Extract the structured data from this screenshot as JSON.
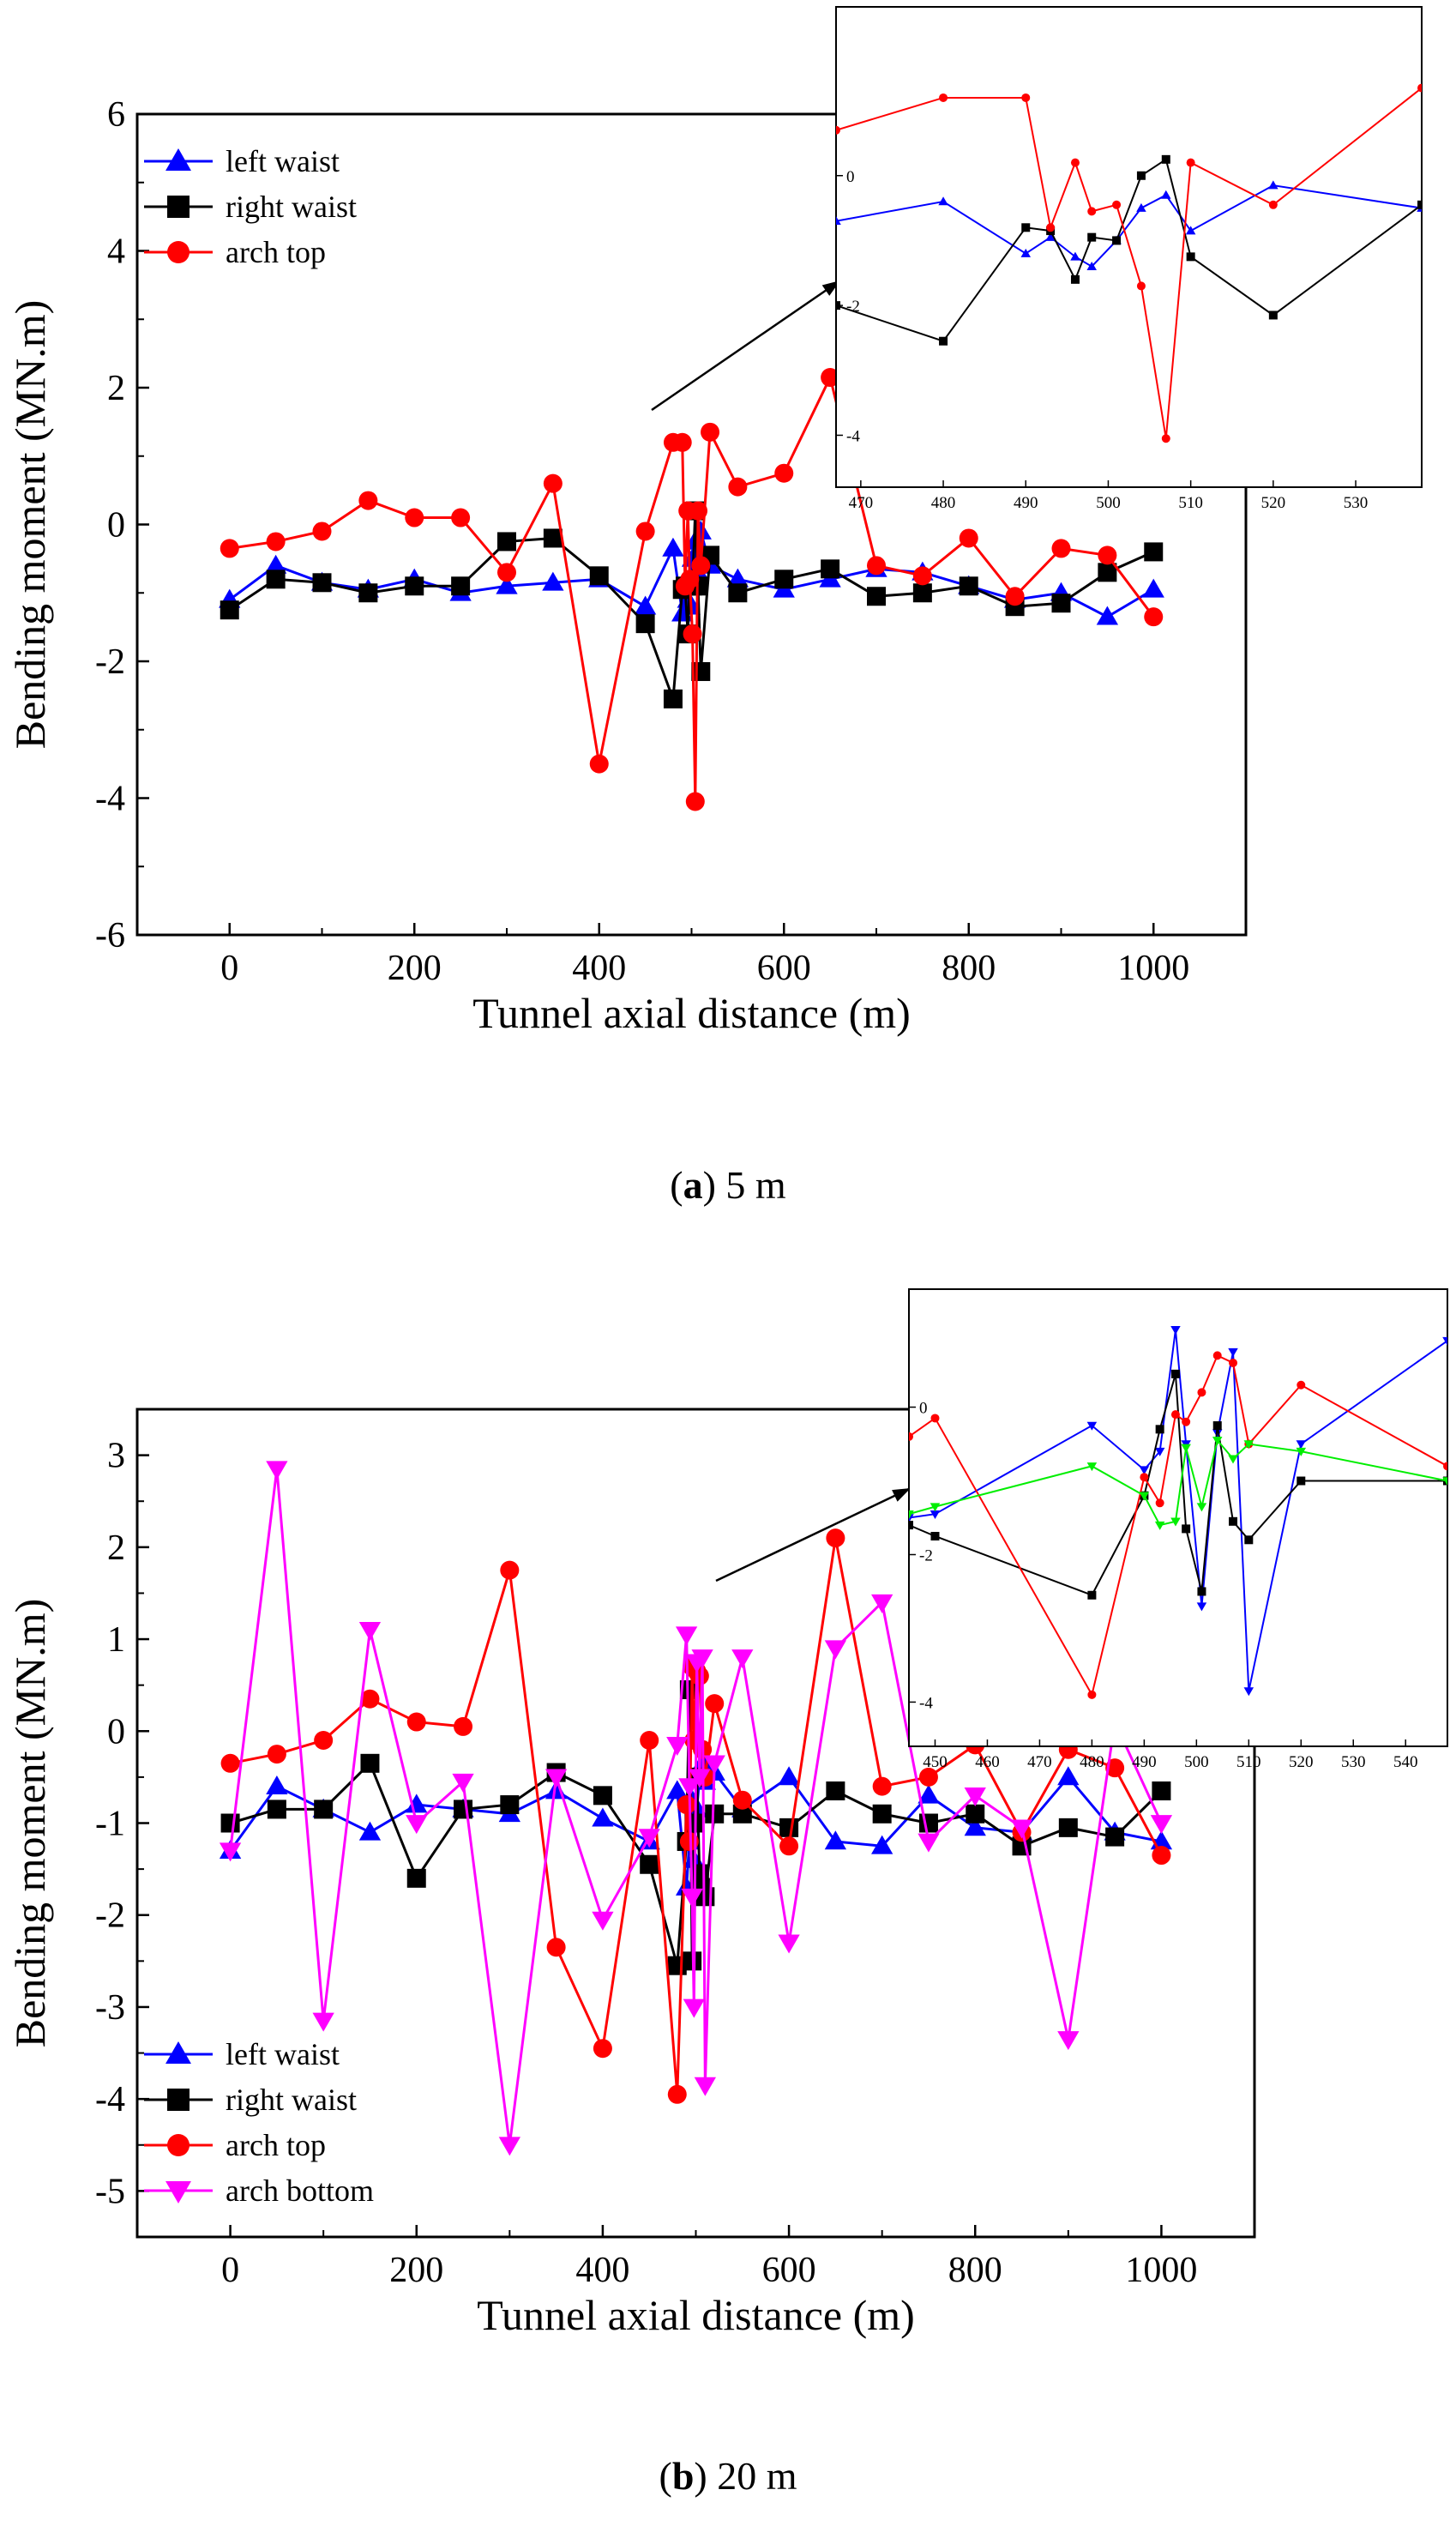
{
  "panels": [
    {
      "caption_letter": "a",
      "caption_rest": ") 5 m"
    },
    {
      "caption_letter": "b",
      "caption_rest": ") 20 m"
    }
  ],
  "colors": {
    "left_waist": "#0000ff",
    "right_waist": "#000000",
    "arch_top": "#ff0000",
    "arch_bottom": "#ff00ff",
    "inset_bottom": "#00ee00"
  },
  "chart_data": [
    {
      "type": "line",
      "title": "",
      "xlabel": "Tunnel axial distance (m)",
      "ylabel": "Bending moment (MN.m)",
      "xlim": [
        -100,
        1100
      ],
      "ylim": [
        -6,
        6
      ],
      "xticks": [
        0,
        200,
        400,
        600,
        800,
        1000
      ],
      "yticks": [
        -6,
        -4,
        -2,
        0,
        2,
        4,
        6
      ],
      "legend_position": "top-left",
      "series": [
        {
          "name": "left waist",
          "marker": "triangle-up",
          "color": "#0000ff",
          "x": [
            0,
            50,
            100,
            150,
            200,
            250,
            300,
            350,
            400,
            450,
            480,
            490,
            493,
            496,
            498,
            501,
            504,
            507,
            510,
            520,
            550,
            600,
            650,
            700,
            750,
            800,
            850,
            900,
            950,
            1000
          ],
          "y": [
            -1.1,
            -0.6,
            -0.85,
            -0.95,
            -0.8,
            -1.0,
            -0.9,
            -0.85,
            -0.8,
            -1.2,
            -0.35,
            -1.3,
            -0.9,
            -1.1,
            -1.2,
            -0.5,
            -0.25,
            -0.7,
            -0.1,
            -0.6,
            -0.8,
            -0.95,
            -0.8,
            -0.65,
            -0.7,
            -0.9,
            -1.1,
            -1.0,
            -1.35,
            -0.95
          ]
        },
        {
          "name": "right waist",
          "marker": "square",
          "color": "#000000",
          "x": [
            0,
            50,
            100,
            150,
            200,
            250,
            300,
            350,
            400,
            450,
            480,
            490,
            493,
            496,
            498,
            501,
            504,
            507,
            510,
            520,
            550,
            600,
            650,
            700,
            750,
            800,
            850,
            900,
            950,
            1000
          ],
          "y": [
            -1.25,
            -0.8,
            -0.85,
            -1.0,
            -0.9,
            -0.9,
            -0.25,
            -0.2,
            -0.75,
            -1.45,
            -2.55,
            -0.95,
            -0.9,
            -1.6,
            -0.9,
            -0.9,
            0.2,
            -0.9,
            -2.15,
            -0.45,
            -1.0,
            -0.8,
            -0.65,
            -1.05,
            -1.0,
            -0.9,
            -1.2,
            -1.15,
            -0.7,
            -0.4
          ]
        },
        {
          "name": "arch top",
          "marker": "circle",
          "color": "#ff0000",
          "x": [
            0,
            50,
            100,
            150,
            200,
            250,
            300,
            350,
            400,
            450,
            480,
            490,
            493,
            496,
            498,
            501,
            504,
            507,
            510,
            520,
            550,
            600,
            650,
            700,
            750,
            800,
            850,
            900,
            950,
            1000
          ],
          "y": [
            -0.35,
            -0.25,
            -0.1,
            0.35,
            0.1,
            0.1,
            -0.7,
            0.6,
            -3.5,
            -0.1,
            1.2,
            1.2,
            -0.9,
            0.2,
            -0.8,
            -1.6,
            -4.05,
            0.2,
            -0.6,
            1.35,
            0.55,
            0.75,
            2.15,
            -0.6,
            -0.75,
            -0.2,
            -1.05,
            -0.35,
            -0.45,
            -1.35
          ]
        }
      ],
      "inset": {
        "xlim": [
          467,
          538
        ],
        "ylim": [
          -4.8,
          2.6
        ],
        "xticks": [
          470,
          480,
          490,
          500,
          510,
          520,
          530
        ],
        "yticks": [
          -4,
          -2,
          0
        ],
        "series": [
          {
            "name": "left waist",
            "color": "#0000ff",
            "marker": "triangle-up",
            "x": [
              467,
              480,
              490,
              493,
              496,
              498,
              501,
              504,
              507,
              510,
              520,
              538
            ],
            "y": [
              -0.7,
              -0.4,
              -1.2,
              -0.95,
              -1.25,
              -1.4,
              -1.0,
              -0.5,
              -0.3,
              -0.85,
              -0.15,
              -0.5
            ]
          },
          {
            "name": "right waist",
            "color": "#000000",
            "marker": "square",
            "x": [
              467,
              480,
              490,
              493,
              496,
              498,
              501,
              504,
              507,
              510,
              520,
              538
            ],
            "y": [
              -2.0,
              -2.55,
              -0.8,
              -0.85,
              -1.6,
              -0.95,
              -1.0,
              0.0,
              0.25,
              -1.25,
              -2.15,
              -0.45
            ]
          },
          {
            "name": "arch top",
            "color": "#ff0000",
            "marker": "circle",
            "x": [
              467,
              480,
              490,
              493,
              496,
              498,
              501,
              504,
              507,
              510,
              520,
              538
            ],
            "y": [
              0.7,
              1.2,
              1.2,
              -0.8,
              0.2,
              -0.55,
              -0.45,
              -1.7,
              -4.05,
              0.2,
              -0.45,
              1.35
            ]
          }
        ]
      }
    },
    {
      "type": "line",
      "title": "",
      "xlabel": "Tunnel axial distance (m)",
      "ylabel": "Bending moment (MN.m)",
      "xlim": [
        -100,
        1100
      ],
      "ylim": [
        -5.5,
        3.5
      ],
      "xticks": [
        0,
        200,
        400,
        600,
        800,
        1000
      ],
      "yticks": [
        -5,
        -4,
        -3,
        -2,
        -1,
        0,
        1,
        2,
        3
      ],
      "legend_position": "bottom-left",
      "series": [
        {
          "name": "left waist",
          "marker": "triangle-up",
          "color": "#0000ff",
          "x": [
            0,
            50,
            100,
            150,
            200,
            250,
            300,
            350,
            400,
            450,
            480,
            490,
            493,
            496,
            498,
            501,
            504,
            507,
            510,
            520,
            550,
            600,
            650,
            700,
            750,
            800,
            850,
            900,
            950,
            1000
          ],
          "y": [
            -1.3,
            -0.6,
            -0.85,
            -1.1,
            -0.8,
            -0.85,
            -0.9,
            -0.65,
            -0.95,
            -1.2,
            -0.65,
            -1.7,
            -1.2,
            -0.75,
            -1.4,
            -0.85,
            -0.5,
            -0.35,
            -0.55,
            -0.45,
            -0.85,
            -0.5,
            -1.2,
            -1.25,
            -0.7,
            -1.05,
            -1.1,
            -0.5,
            -1.1,
            -1.2
          ]
        },
        {
          "name": "right waist",
          "marker": "square",
          "color": "#000000",
          "x": [
            0,
            50,
            100,
            150,
            200,
            250,
            300,
            350,
            400,
            450,
            480,
            490,
            493,
            496,
            498,
            501,
            504,
            507,
            510,
            520,
            550,
            600,
            650,
            700,
            750,
            800,
            850,
            900,
            950,
            1000
          ],
          "y": [
            -1.0,
            -0.85,
            -0.85,
            -0.35,
            -1.6,
            -0.85,
            -0.8,
            -0.45,
            -0.7,
            -1.45,
            -2.55,
            -1.2,
            0.45,
            -2.5,
            -1.0,
            -0.5,
            -1.55,
            -1.7,
            -1.8,
            -0.9,
            -0.9,
            -1.05,
            -0.65,
            -0.9,
            -1.0,
            -0.9,
            -1.25,
            -1.05,
            -1.15,
            -0.65
          ]
        },
        {
          "name": "arch top",
          "marker": "circle",
          "color": "#ff0000",
          "x": [
            0,
            50,
            100,
            150,
            200,
            250,
            300,
            350,
            400,
            450,
            480,
            490,
            493,
            496,
            498,
            501,
            504,
            507,
            510,
            520,
            550,
            600,
            650,
            700,
            750,
            800,
            850,
            900,
            950,
            1000
          ],
          "y": [
            -0.35,
            -0.25,
            -0.1,
            0.35,
            0.1,
            0.05,
            1.75,
            -2.35,
            -3.45,
            -0.1,
            -3.95,
            -0.8,
            -1.2,
            0.7,
            -0.1,
            0.65,
            0.6,
            -0.2,
            -0.5,
            0.3,
            -0.75,
            -1.25,
            2.1,
            -0.6,
            -0.5,
            -0.15,
            -1.1,
            -0.2,
            -0.4,
            -1.35
          ]
        },
        {
          "name": "arch bottom",
          "marker": "triangle-down",
          "color": "#ff00ff",
          "x": [
            0,
            50,
            100,
            150,
            200,
            250,
            300,
            350,
            400,
            450,
            480,
            490,
            493,
            496,
            498,
            501,
            504,
            507,
            510,
            520,
            550,
            600,
            650,
            700,
            750,
            800,
            850,
            900,
            950,
            1000
          ],
          "y": [
            -1.3,
            2.85,
            -3.15,
            1.1,
            -1.0,
            -0.55,
            -4.5,
            -0.5,
            -2.05,
            -1.15,
            -0.15,
            1.05,
            -0.6,
            -1.8,
            -3.0,
            0.75,
            -0.5,
            0.8,
            -3.85,
            -0.35,
            0.8,
            -2.3,
            0.9,
            1.4,
            -1.2,
            -0.7,
            -1.05,
            -3.35,
            0.1,
            -1.0
          ]
        }
      ],
      "inset": {
        "xlim": [
          445,
          548
        ],
        "ylim": [
          -4.6,
          1.6
        ],
        "xticks": [
          450,
          460,
          470,
          480,
          490,
          500,
          510,
          520,
          530,
          540
        ],
        "yticks": [
          -4,
          -2,
          0
        ],
        "series": [
          {
            "name": "left waist",
            "color": "#0000ff",
            "marker": "triangle-down",
            "x": [
              445,
              450,
              480,
              490,
              493,
              496,
              498,
              501,
              504,
              507,
              510,
              520,
              548
            ],
            "y": [
              -1.5,
              -1.45,
              -0.25,
              -0.85,
              -0.6,
              1.05,
              -0.5,
              -2.7,
              -0.35,
              0.75,
              -3.85,
              -0.5,
              0.9
            ]
          },
          {
            "name": "right waist",
            "color": "#000000",
            "marker": "square",
            "x": [
              445,
              450,
              480,
              490,
              493,
              496,
              498,
              501,
              504,
              507,
              510,
              520,
              548
            ],
            "y": [
              -1.6,
              -1.75,
              -2.55,
              -1.2,
              -0.3,
              0.45,
              -1.65,
              -2.5,
              -0.25,
              -1.55,
              -1.8,
              -1.0,
              -1.0
            ]
          },
          {
            "name": "arch top",
            "color": "#ff0000",
            "marker": "circle",
            "x": [
              445,
              450,
              480,
              490,
              493,
              496,
              498,
              501,
              504,
              507,
              510,
              520,
              548
            ],
            "y": [
              -0.4,
              -0.15,
              -3.9,
              -0.95,
              -1.3,
              -0.1,
              -0.2,
              0.2,
              0.7,
              0.6,
              -0.5,
              0.3,
              -0.8
            ]
          },
          {
            "name": "arch bottom",
            "color": "#00ee00",
            "marker": "triangle-down",
            "x": [
              445,
              450,
              480,
              490,
              493,
              496,
              498,
              501,
              504,
              507,
              510,
              520,
              548
            ],
            "y": [
              -1.45,
              -1.35,
              -0.8,
              -1.2,
              -1.6,
              -1.55,
              -0.55,
              -1.35,
              -0.45,
              -0.7,
              -0.5,
              -0.6,
              -1.0
            ]
          }
        ]
      }
    }
  ]
}
